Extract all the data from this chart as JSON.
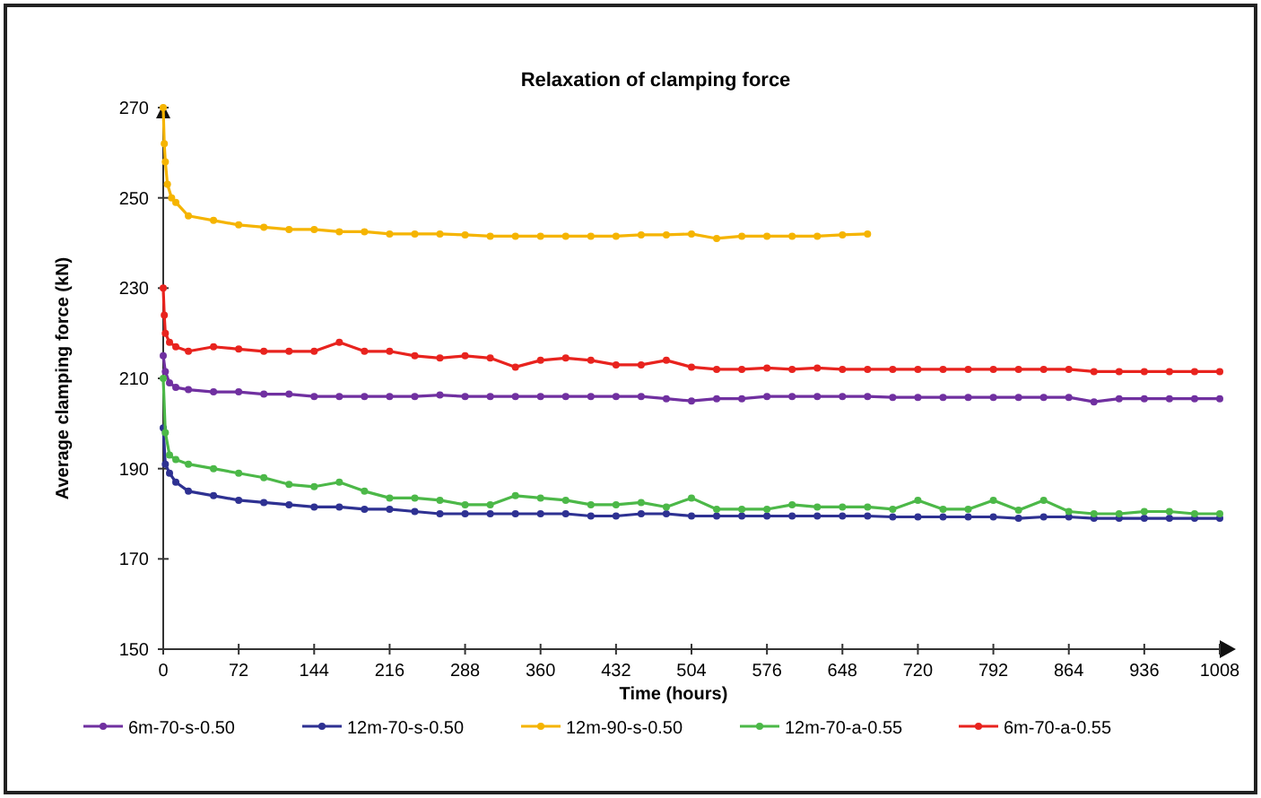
{
  "chart_data": {
    "type": "line",
    "title": "Relaxation of clamping force",
    "xlabel": "Time (hours)",
    "ylabel": "Average clamping force (kN)",
    "xlim": [
      0,
      1008
    ],
    "xticks": [
      0,
      72,
      144,
      216,
      288,
      360,
      432,
      504,
      576,
      648,
      720,
      792,
      864,
      936,
      1008
    ],
    "ylim": [
      150,
      270
    ],
    "yticks": [
      150,
      170,
      190,
      210,
      230,
      250,
      270
    ],
    "grid": false,
    "legend": "bottom",
    "marker": "circle",
    "line_style": "solid",
    "series": [
      {
        "name": "6m-70-s-0.50",
        "color": "#7030a0",
        "x": [
          0,
          2,
          6,
          12,
          24,
          48,
          72,
          96,
          120,
          144,
          168,
          192,
          216,
          240,
          264,
          288,
          312,
          336,
          360,
          384,
          408,
          432,
          456,
          480,
          504,
          528,
          552,
          576,
          600,
          624,
          648,
          672,
          696,
          720,
          744,
          768,
          792,
          816,
          840,
          864,
          888,
          912,
          936,
          960,
          984,
          1008
        ],
        "values": [
          215,
          211.5,
          209,
          208,
          207.5,
          207,
          207,
          206.5,
          206.5,
          206,
          206,
          206,
          206,
          206,
          206.3,
          206,
          206,
          206,
          206,
          206,
          206,
          206,
          206,
          205.5,
          205,
          205.5,
          205.5,
          206,
          206,
          206,
          206,
          206,
          205.8,
          205.8,
          205.8,
          205.8,
          205.8,
          205.8,
          205.8,
          205.8,
          204.8,
          205.5,
          205.5,
          205.5,
          205.5,
          205.5
        ]
      },
      {
        "name": "12m-70-s-0.50",
        "color": "#2e3192",
        "x": [
          0,
          2,
          6,
          12,
          24,
          48,
          72,
          96,
          120,
          144,
          168,
          192,
          216,
          240,
          264,
          288,
          312,
          336,
          360,
          384,
          408,
          432,
          456,
          480,
          504,
          528,
          552,
          576,
          600,
          624,
          648,
          672,
          696,
          720,
          744,
          768,
          792,
          816,
          840,
          864,
          888,
          912,
          936,
          960,
          984,
          1008
        ],
        "values": [
          199,
          191,
          189,
          187,
          185,
          184,
          183,
          182.5,
          182,
          181.5,
          181.5,
          181,
          181,
          180.5,
          180,
          180,
          180,
          180,
          180,
          180,
          179.5,
          179.5,
          180,
          180,
          179.5,
          179.5,
          179.5,
          179.5,
          179.5,
          179.5,
          179.5,
          179.5,
          179.3,
          179.3,
          179.3,
          179.3,
          179.3,
          179,
          179.3,
          179.3,
          179,
          179,
          179,
          179,
          179,
          179
        ]
      },
      {
        "name": "12m-90-s-0.50",
        "color": "#f5b400",
        "x": [
          0,
          1,
          2,
          4,
          8,
          12,
          24,
          48,
          72,
          96,
          120,
          144,
          168,
          192,
          216,
          240,
          264,
          288,
          312,
          336,
          360,
          384,
          408,
          432,
          456,
          480,
          504,
          528,
          552,
          576,
          600,
          624,
          648,
          672
        ],
        "values": [
          270,
          262,
          258,
          253,
          250,
          249,
          246,
          245,
          244,
          243.5,
          243,
          243,
          242.5,
          242.5,
          242,
          242,
          242,
          241.8,
          241.5,
          241.5,
          241.5,
          241.5,
          241.5,
          241.5,
          241.8,
          241.8,
          242,
          241,
          241.5,
          241.5,
          241.5,
          241.5,
          241.8,
          242
        ]
      },
      {
        "name": "12m-70-a-0.55",
        "color": "#4cb848",
        "x": [
          0,
          2,
          6,
          12,
          24,
          48,
          72,
          96,
          120,
          144,
          168,
          192,
          216,
          240,
          264,
          288,
          312,
          336,
          360,
          384,
          408,
          432,
          456,
          480,
          504,
          528,
          552,
          576,
          600,
          624,
          648,
          672,
          696,
          720,
          744,
          768,
          792,
          816,
          840,
          864,
          888,
          912,
          936,
          960,
          984,
          1008
        ],
        "values": [
          210,
          198,
          193,
          192,
          191,
          190,
          189,
          188,
          186.5,
          186,
          187,
          185,
          183.5,
          183.5,
          183,
          182,
          182,
          184,
          183.5,
          183,
          182,
          182,
          182.5,
          181.5,
          183.5,
          181,
          181,
          181,
          182,
          181.5,
          181.5,
          181.5,
          181,
          183,
          181,
          181,
          183,
          180.8,
          183,
          180.5,
          180,
          180,
          180.5,
          180.5,
          180,
          180
        ]
      },
      {
        "name": "6m-70-a-0.55",
        "color": "#e8231e",
        "x": [
          0,
          1,
          2,
          6,
          12,
          24,
          48,
          72,
          96,
          120,
          144,
          168,
          192,
          216,
          240,
          264,
          288,
          312,
          336,
          360,
          384,
          408,
          432,
          456,
          480,
          504,
          528,
          552,
          576,
          600,
          624,
          648,
          672,
          696,
          720,
          744,
          768,
          792,
          816,
          840,
          864,
          888,
          912,
          936,
          960,
          984,
          1008
        ],
        "values": [
          230,
          224,
          220,
          218,
          217,
          216,
          217,
          216.5,
          216,
          216,
          216,
          218,
          216,
          216,
          215,
          214.5,
          215,
          214.5,
          212.5,
          214,
          214.5,
          214,
          213,
          213,
          214,
          212.5,
          212,
          212,
          212.3,
          212,
          212.3,
          212,
          212,
          212,
          212,
          212,
          212,
          212,
          212,
          212,
          212,
          211.5,
          211.5,
          211.5,
          211.5,
          211.5,
          211.5
        ]
      }
    ]
  }
}
